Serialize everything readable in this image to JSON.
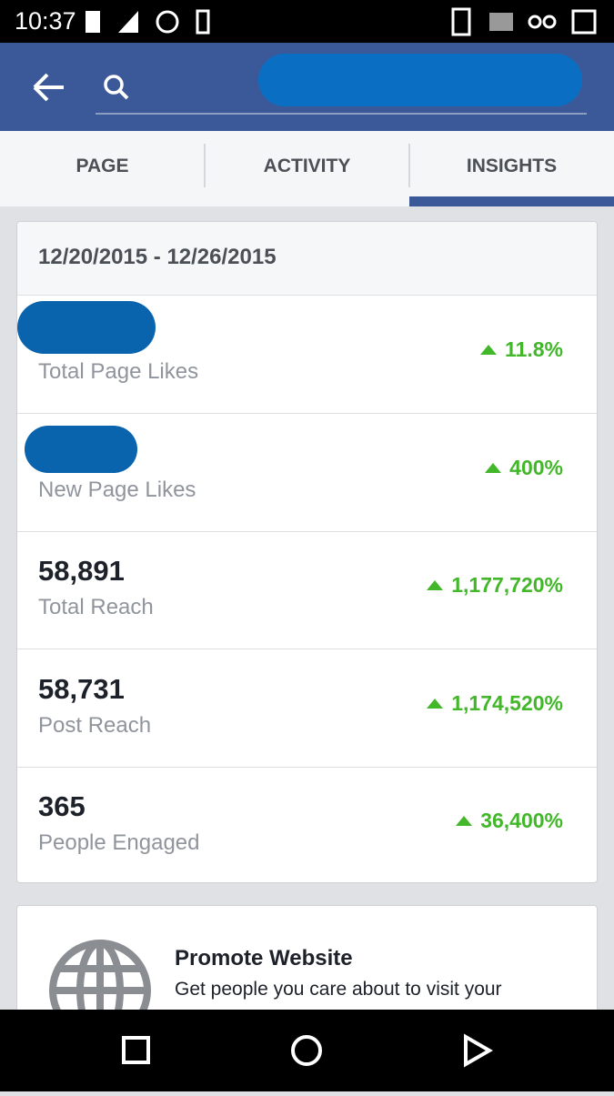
{
  "status_bar": {
    "time": "10:37"
  },
  "tabs": [
    "PAGE",
    "ACTIVITY",
    "INSIGHTS"
  ],
  "insights": {
    "date_range": "12/20/2015 - 12/26/2015",
    "metrics": [
      {
        "label": "Total Page Likes",
        "change": "11.8%"
      },
      {
        "label": "New Page Likes",
        "change": "400%"
      },
      {
        "value": "58,891",
        "label": "Total Reach",
        "change": "1,177,720%"
      },
      {
        "value": "58,731",
        "label": "Post Reach",
        "change": "1,174,520%"
      },
      {
        "value": "365",
        "label": "People Engaged",
        "change": "36,400%"
      }
    ]
  },
  "promote": {
    "title": "Promote Website",
    "text": "Get people you care about to visit your"
  }
}
